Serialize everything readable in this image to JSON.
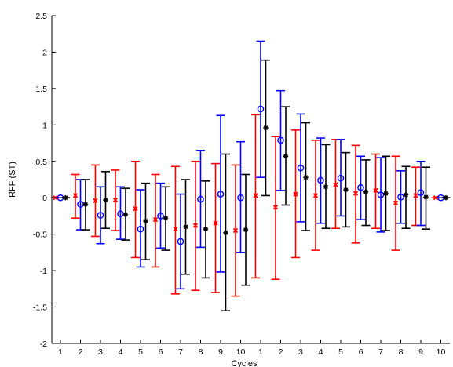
{
  "chart_data": {
    "type": "errorbar",
    "xlabel": "Cycles",
    "ylabel": "RFF (ST)",
    "ylim": [
      -2,
      2.5
    ],
    "yticks": [
      -2,
      -1.5,
      -1,
      -0.5,
      0,
      0.5,
      1,
      1.5,
      2,
      2.5
    ],
    "ytick_labels": [
      "-2",
      "-1.5",
      "-1",
      "-0.5",
      "0",
      "0.5",
      "1",
      "1.5",
      "2",
      "2.5"
    ],
    "xtick_labels": [
      "1",
      "2",
      "3",
      "4",
      "5",
      "6",
      "7",
      "8",
      "9",
      "10",
      "1",
      "2",
      "3",
      "4",
      "5",
      "6",
      "7",
      "8",
      "9",
      "10"
    ],
    "grid": false,
    "legend": "none",
    "series": [
      {
        "marker": "x",
        "color": "#ff0000",
        "values": [
          0,
          0.03,
          -0.04,
          -0.03,
          -0.15,
          -0.3,
          -0.43,
          -0.38,
          -0.35,
          -0.45,
          0.03,
          -0.13,
          0.05,
          0.03,
          0.18,
          0.06,
          0.1,
          -0.07,
          0.03,
          0
        ],
        "err_low": [
          0,
          -0.28,
          -0.53,
          -0.45,
          -0.82,
          -0.95,
          -1.32,
          -1.27,
          -1.3,
          -1.35,
          -1.1,
          -1.12,
          -0.82,
          -0.72,
          -0.42,
          -0.62,
          -0.42,
          -0.72,
          -0.38,
          0
        ],
        "err_high": [
          0,
          0.32,
          0.45,
          0.38,
          0.5,
          0.32,
          0.43,
          0.5,
          0.47,
          0.45,
          1.14,
          0.84,
          0.93,
          0.79,
          0.8,
          0.72,
          0.6,
          0.57,
          0.42,
          0
        ]
      },
      {
        "marker": "o",
        "color": "#0000ff",
        "values": [
          0,
          -0.09,
          -0.24,
          -0.22,
          -0.43,
          -0.25,
          -0.6,
          -0.02,
          0.05,
          0,
          1.22,
          0.79,
          0.41,
          0.24,
          0.27,
          0.14,
          0.04,
          0.01,
          0.07,
          0
        ],
        "err_low": [
          0,
          -0.44,
          -0.63,
          -0.57,
          -0.95,
          -0.69,
          -1.25,
          -0.68,
          -1.02,
          -0.75,
          0.28,
          0.1,
          -0.33,
          -0.35,
          -0.25,
          -0.3,
          -0.47,
          -0.35,
          -0.38,
          0
        ],
        "err_high": [
          0,
          0.25,
          0.15,
          0.15,
          0.11,
          0.2,
          0.05,
          0.65,
          1.13,
          0.77,
          2.15,
          1.47,
          1.15,
          0.82,
          0.8,
          0.57,
          0.55,
          0.37,
          0.5,
          0
        ]
      },
      {
        "marker": "*",
        "color": "#000000",
        "values": [
          0,
          -0.09,
          -0.03,
          -0.23,
          -0.32,
          -0.28,
          -0.4,
          -0.43,
          -0.48,
          -0.44,
          0.96,
          0.57,
          0.28,
          0.15,
          0.11,
          0.08,
          0.06,
          0.04,
          0.01,
          0
        ],
        "err_low": [
          0,
          -0.44,
          -0.42,
          -0.58,
          -0.85,
          -0.72,
          -1.05,
          -1.1,
          -1.55,
          -1.2,
          0.03,
          -0.1,
          -0.45,
          -0.42,
          -0.4,
          -0.38,
          -0.45,
          -0.42,
          -0.43,
          0
        ],
        "err_high": [
          0,
          0.25,
          0.36,
          0.13,
          0.2,
          0.15,
          0.25,
          0.23,
          0.6,
          0.32,
          1.89,
          1.25,
          1.03,
          0.73,
          0.62,
          0.52,
          0.57,
          0.43,
          0.42,
          0
        ]
      }
    ]
  }
}
